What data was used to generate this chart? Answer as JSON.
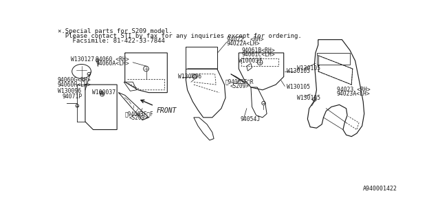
{
  "bg_color": "#ffffff",
  "line_color": "#1a1a1a",
  "text_color": "#1a1a1a",
  "notice_lines": [
    "×.Special parts for S209 model.",
    "  Please contact STI by fax for any inquiries except for ordering.",
    "    Facsimile: 81-422-33-7844"
  ],
  "diagram_note_fontsize": 6.5,
  "label_fontsize": 5.8,
  "front_fontsize": 7.0,
  "part_id": "A940001422"
}
